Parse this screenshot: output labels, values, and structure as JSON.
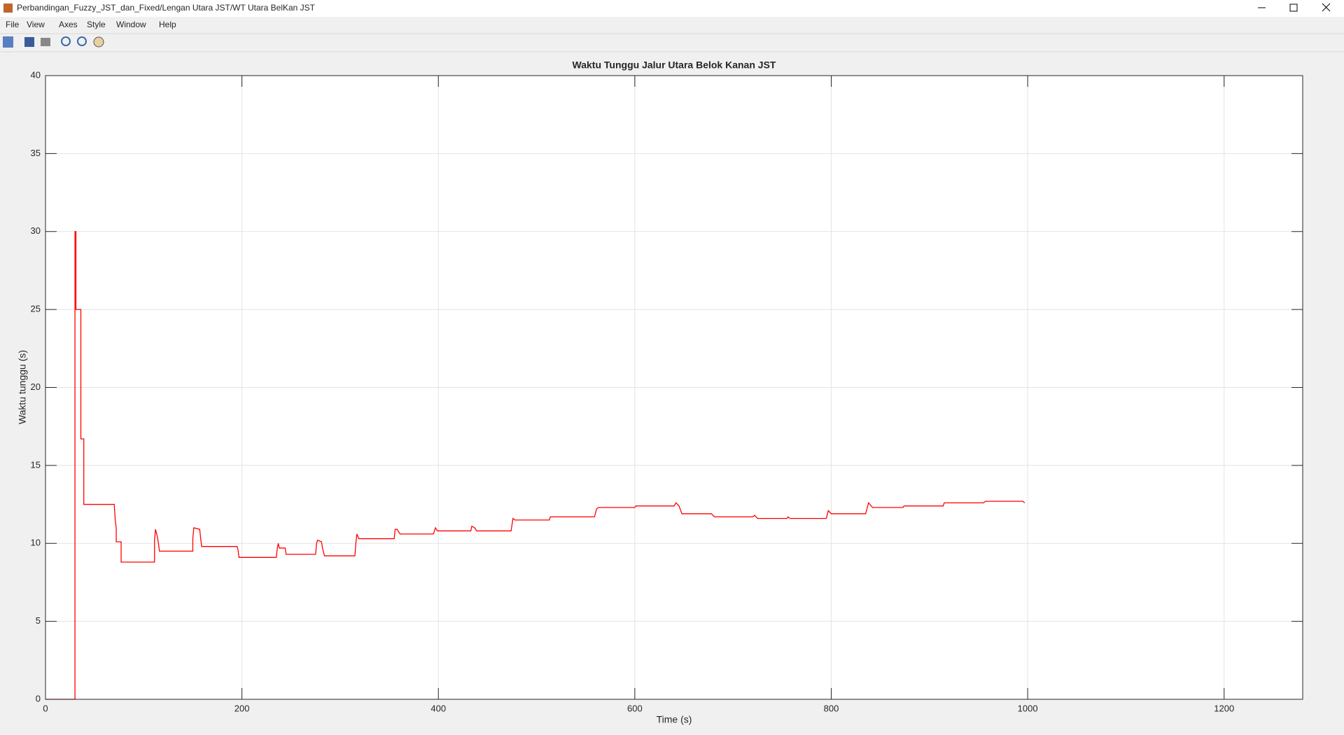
{
  "window": {
    "title": "Perbandingan_Fuzzy_JST_dan_Fixed/Lengan Utara JST/WT Utara BelKan JST",
    "menu": [
      "File",
      "View",
      "Axes",
      "Style",
      "Window",
      "Help"
    ]
  },
  "chart_data": {
    "type": "line",
    "title": "Waktu Tunggu Jalur Utara Belok Kanan JST",
    "xlabel": "Time (s)",
    "ylabel": "Waktu tunggu (s)",
    "color": "#ff0000",
    "grid": true,
    "xlim": [
      0,
      1280
    ],
    "xticks": [
      0,
      200,
      400,
      600,
      800,
      1000,
      1200
    ],
    "ylim": [
      0,
      40
    ],
    "yticks": [
      0,
      5,
      10,
      15,
      20,
      25,
      30,
      35,
      40
    ],
    "x": [
      0,
      30,
      30,
      31,
      31,
      36,
      36,
      39,
      39,
      70,
      71,
      72,
      72,
      77,
      77,
      111,
      111,
      112,
      114,
      115,
      116,
      150,
      150,
      151,
      157,
      158,
      159,
      195,
      196,
      197,
      235,
      236,
      237,
      238,
      244,
      245,
      275,
      276,
      277,
      281,
      282,
      284,
      315,
      316,
      317,
      319,
      355,
      356,
      358,
      361,
      395,
      397,
      399,
      433,
      434,
      437,
      439,
      474,
      476,
      478,
      513,
      514,
      559,
      561,
      563,
      600,
      601,
      640,
      642,
      645,
      648,
      678,
      681,
      720,
      722,
      725,
      755,
      756,
      758,
      795,
      797,
      800,
      835,
      838,
      842,
      873,
      874,
      914,
      915,
      955,
      957,
      995,
      997
    ],
    "values": [
      0,
      0,
      30,
      30,
      25,
      25,
      16.7,
      16.7,
      12.5,
      12.5,
      11.5,
      11,
      10.1,
      10.1,
      8.8,
      8.8,
      10.2,
      10.9,
      10.4,
      10,
      9.5,
      9.5,
      10.3,
      11,
      10.9,
      10.3,
      9.8,
      9.8,
      9.6,
      9.1,
      9.1,
      9.7,
      10,
      9.7,
      9.7,
      9.3,
      9.3,
      10,
      10.2,
      10.1,
      9.7,
      9.2,
      9.2,
      10,
      10.6,
      10.3,
      10.3,
      10.9,
      10.9,
      10.6,
      10.6,
      11,
      10.8,
      10.8,
      11.1,
      11,
      10.8,
      10.8,
      11.6,
      11.5,
      11.5,
      11.7,
      11.7,
      12.2,
      12.3,
      12.3,
      12.4,
      12.4,
      12.6,
      12.4,
      11.9,
      11.9,
      11.7,
      11.7,
      11.8,
      11.6,
      11.6,
      11.7,
      11.6,
      11.6,
      12.1,
      11.9,
      11.9,
      12.6,
      12.3,
      12.3,
      12.4,
      12.4,
      12.6,
      12.6,
      12.7,
      12.7,
      12.6
    ]
  }
}
